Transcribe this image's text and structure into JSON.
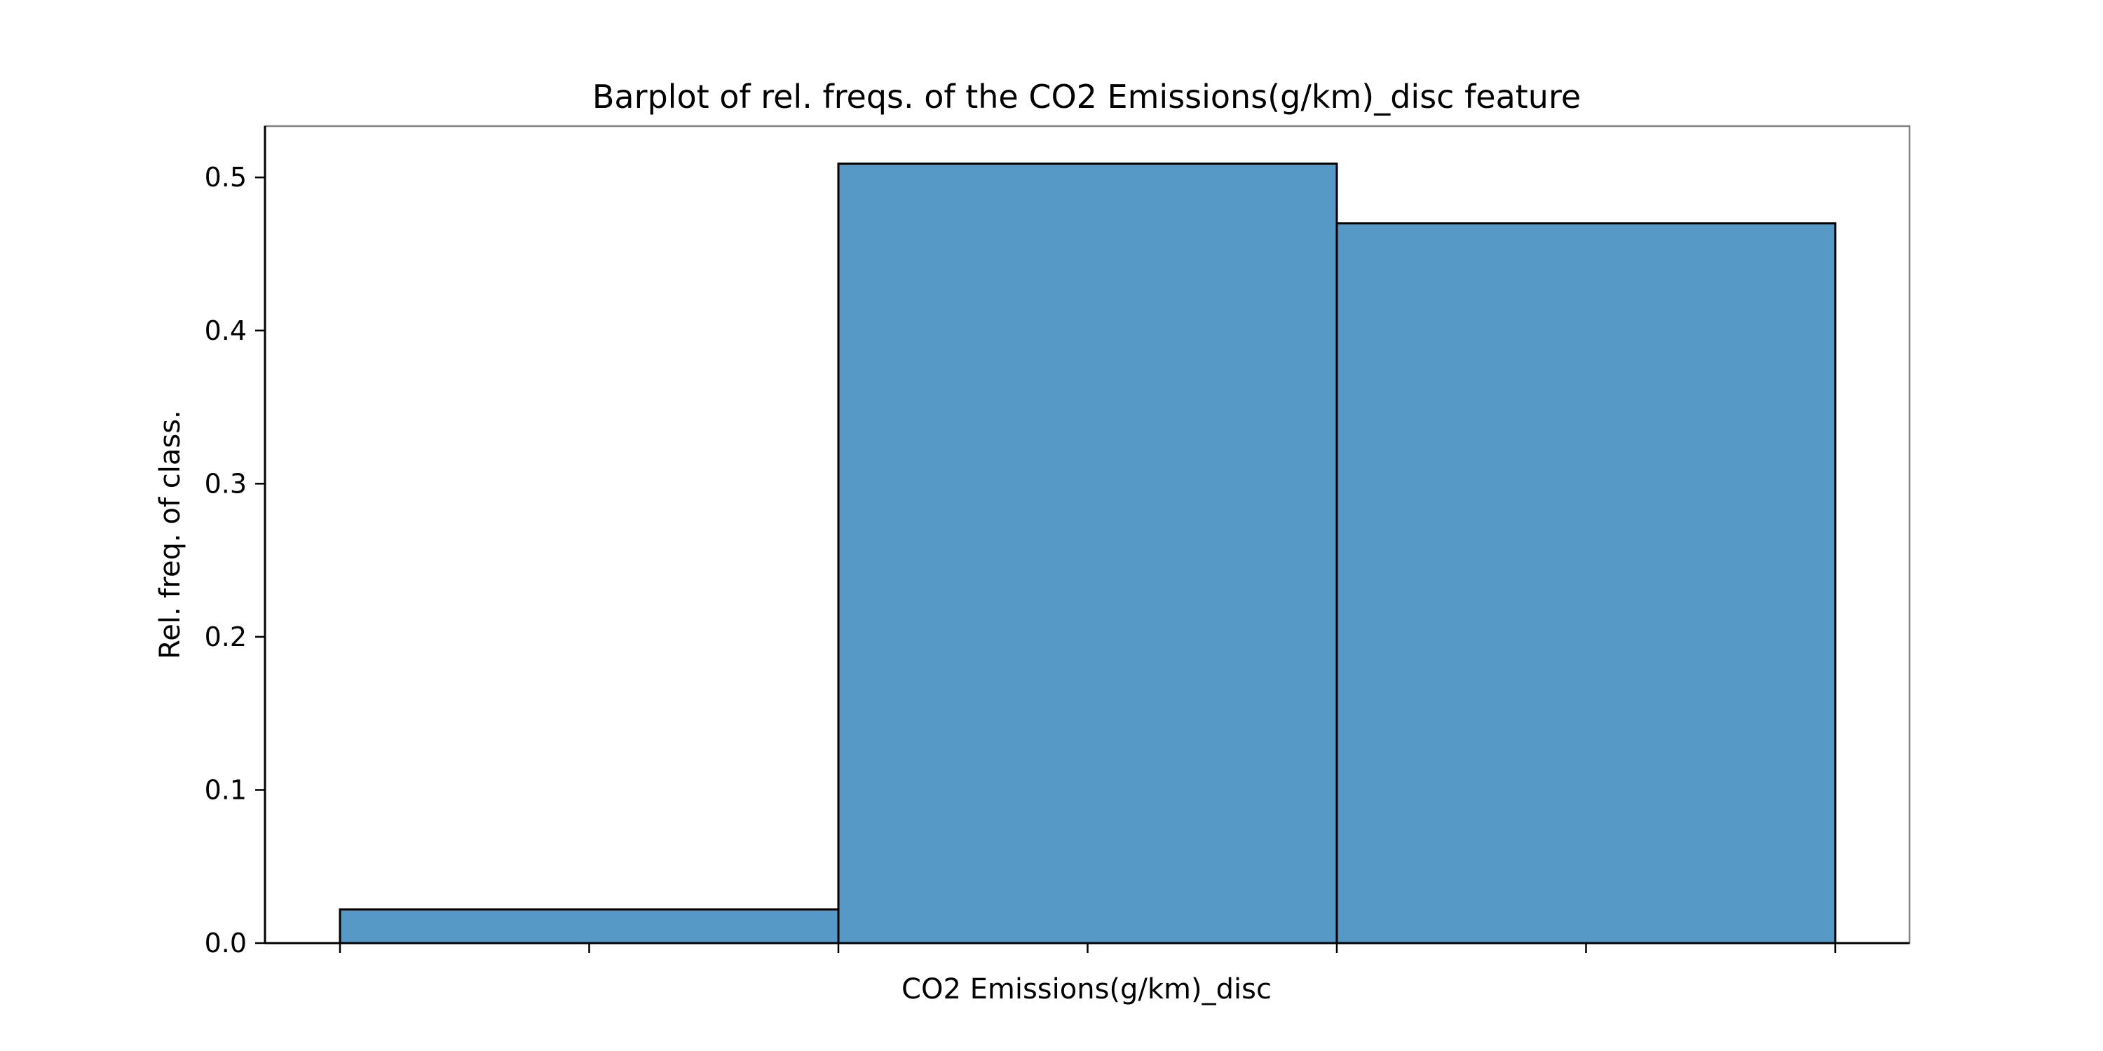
{
  "chart_data": {
    "type": "bar",
    "title": "Barplot of rel. freqs. of the CO2 Emissions(g/km)_disc feature",
    "xlabel": "CO2 Emissions(g/km)_disc",
    "ylabel": "Rel. freq. of class.",
    "x_tick_labels_shown": false,
    "ylim": [
      0,
      0.5335
    ],
    "yticks": [
      0.0,
      0.1,
      0.2,
      0.3,
      0.4,
      0.5
    ],
    "ytick_labels": [
      "0.0",
      "0.1",
      "0.2",
      "0.3",
      "0.4",
      "0.5"
    ],
    "values": [
      0.022,
      0.509,
      0.47
    ],
    "grid": false,
    "legend": "none",
    "bar_color": "#5799c6",
    "edge_color": "#000000"
  }
}
